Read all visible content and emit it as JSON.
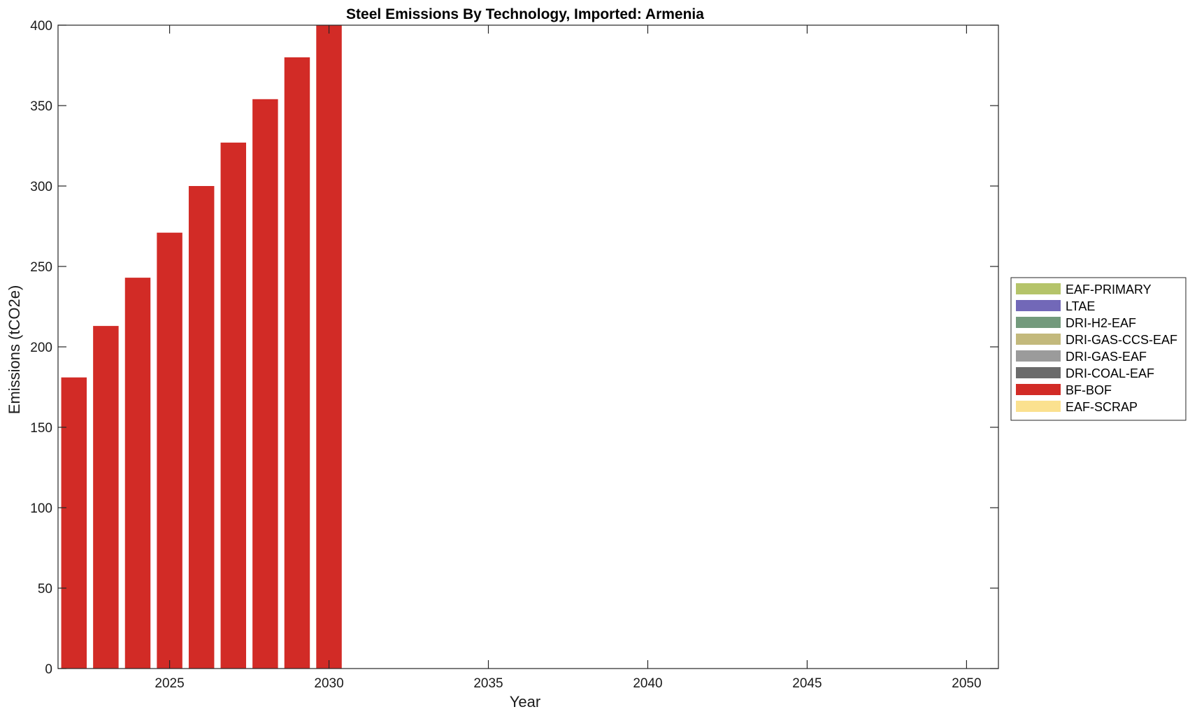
{
  "chart_data": {
    "type": "bar",
    "stacked": true,
    "title": "Steel Emissions By Technology, Imported: Armenia",
    "xlabel": "Year",
    "ylabel": "Emissions (tCO2e)",
    "xlim": [
      2021.5,
      2051
    ],
    "ylim": [
      0,
      400
    ],
    "xticks": [
      2025,
      2030,
      2035,
      2040,
      2045,
      2050
    ],
    "yticks": [
      0,
      50,
      100,
      150,
      200,
      250,
      300,
      350,
      400
    ],
    "x": [
      2022,
      2023,
      2024,
      2025,
      2026,
      2027,
      2028,
      2029,
      2030
    ],
    "legend_position": "right",
    "series": [
      {
        "name": "EAF-PRIMARY",
        "color": "#b5c46a",
        "values": [
          0,
          0,
          0,
          0,
          0,
          0,
          0,
          0,
          0
        ]
      },
      {
        "name": "LTAE",
        "color": "#7268b8",
        "values": [
          0,
          0,
          0,
          0,
          0,
          0,
          0,
          0,
          0
        ]
      },
      {
        "name": "DRI-H2-EAF",
        "color": "#739a7c",
        "values": [
          0,
          0,
          0,
          0,
          0,
          0,
          0,
          0,
          0
        ]
      },
      {
        "name": "DRI-GAS-CCS-EAF",
        "color": "#c3b97c",
        "values": [
          0,
          0,
          0,
          0,
          0,
          0,
          0,
          0,
          0
        ]
      },
      {
        "name": "DRI-GAS-EAF",
        "color": "#9b9b9b",
        "values": [
          0,
          0,
          0,
          0,
          0,
          0,
          0,
          0,
          0
        ]
      },
      {
        "name": "DRI-COAL-EAF",
        "color": "#6b6b6b",
        "values": [
          0,
          0,
          0,
          0,
          0,
          0,
          0,
          0,
          0
        ]
      },
      {
        "name": "BF-BOF",
        "color": "#d22b26",
        "values": [
          181,
          213,
          243,
          271,
          300,
          327,
          354,
          380,
          405
        ]
      },
      {
        "name": "EAF-SCRAP",
        "color": "#fbe18f",
        "values": [
          0,
          0,
          0,
          0,
          0,
          0,
          0,
          0,
          0
        ]
      }
    ]
  }
}
